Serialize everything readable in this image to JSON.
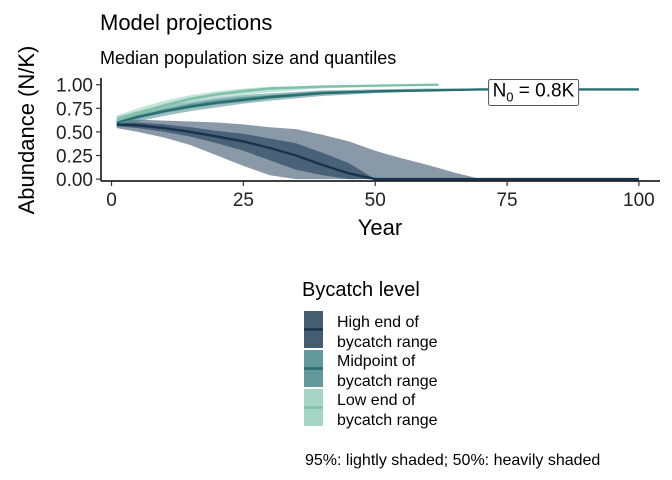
{
  "chart_data": {
    "type": "line",
    "title": "Model projections",
    "subtitle": "Median population size and quantiles",
    "xlabel": "Year",
    "ylabel": "Abundance  (N/K)",
    "xlim": [
      -2,
      104
    ],
    "ylim": [
      -0.02,
      1.05
    ],
    "xticks": [
      "0",
      "25",
      "50",
      "75",
      "100"
    ],
    "xtick_values": [
      0,
      25,
      50,
      75,
      100
    ],
    "yticks": [
      "0.00",
      "0.25",
      "0.50",
      "0.75",
      "1.00"
    ],
    "ytick_values": [
      0,
      0.25,
      0.5,
      0.75,
      1.0
    ],
    "grid": false,
    "legend_title": "Bycatch level",
    "legend_position": "bottom",
    "annotation": {
      "base": "N",
      "sub": "0",
      "rest": " = 0.8K",
      "x": 80,
      "y": 0.95
    },
    "caption": "95%: lightly shaded; 50%: heavily shaded",
    "series": [
      {
        "name": "High end of bycatch range",
        "label_lines": [
          "High end of",
          "bycatch range"
        ],
        "color": "#163450",
        "band_color": "#163450",
        "x": [
          1,
          5,
          10,
          15,
          20,
          25,
          30,
          35,
          40,
          45,
          50,
          55,
          60,
          65,
          70,
          100
        ],
        "y": [
          0.58,
          0.57,
          0.54,
          0.5,
          0.45,
          0.4,
          0.33,
          0.25,
          0.15,
          0.06,
          0.0,
          0.0,
          0.0,
          0.0,
          0.0,
          0.0
        ],
        "lo95": [
          0.54,
          0.5,
          0.44,
          0.36,
          0.25,
          0.14,
          0.04,
          0.0,
          0.0,
          0.0,
          0.0,
          0.0,
          0.0,
          0.0,
          0.0,
          0.0
        ],
        "hi95": [
          0.62,
          0.63,
          0.62,
          0.61,
          0.6,
          0.58,
          0.55,
          0.53,
          0.47,
          0.4,
          0.3,
          0.22,
          0.15,
          0.07,
          0.0,
          0.0
        ],
        "lo50": [
          0.56,
          0.54,
          0.5,
          0.45,
          0.38,
          0.3,
          0.2,
          0.1,
          0.04,
          0.0,
          0.0,
          0.0,
          0.0,
          0.0,
          0.0,
          0.0
        ],
        "hi50": [
          0.6,
          0.6,
          0.58,
          0.55,
          0.51,
          0.48,
          0.43,
          0.38,
          0.28,
          0.17,
          0.0,
          0.0,
          0.0,
          0.0,
          0.0,
          0.0
        ]
      },
      {
        "name": "Midpoint of bycatch range",
        "label_lines": [
          "Midpoint of",
          "bycatch range"
        ],
        "color": "#2b6e72",
        "band_color": "#3a7f83",
        "x": [
          1,
          5,
          10,
          15,
          20,
          25,
          30,
          40,
          50,
          60,
          70,
          80,
          90,
          100
        ],
        "y": [
          0.6,
          0.66,
          0.72,
          0.77,
          0.81,
          0.84,
          0.87,
          0.91,
          0.93,
          0.94,
          0.95,
          0.95,
          0.95,
          0.95
        ],
        "lo95": [
          0.55,
          0.61,
          0.67,
          0.72,
          0.76,
          0.8,
          0.83,
          0.88,
          0.91,
          0.93,
          0.94,
          0.94,
          0.94,
          0.94
        ],
        "hi95": [
          0.66,
          0.72,
          0.78,
          0.82,
          0.86,
          0.89,
          0.91,
          0.94,
          0.95,
          0.96,
          0.96,
          0.96,
          0.96,
          0.96
        ],
        "lo50": [
          0.58,
          0.64,
          0.7,
          0.75,
          0.79,
          0.82,
          0.85,
          0.9,
          0.92,
          0.93,
          0.94,
          0.94,
          0.94,
          0.94
        ],
        "hi50": [
          0.62,
          0.69,
          0.75,
          0.8,
          0.84,
          0.87,
          0.89,
          0.93,
          0.94,
          0.95,
          0.95,
          0.95,
          0.95,
          0.95
        ]
      },
      {
        "name": "Low end of bycatch range",
        "label_lines": [
          "Low end of",
          "bycatch range"
        ],
        "color": "#7fc0ab",
        "band_color": "#8fcab6",
        "x": [
          1,
          5,
          10,
          15,
          20,
          25,
          30,
          40,
          50,
          62
        ],
        "y": [
          0.62,
          0.7,
          0.78,
          0.85,
          0.9,
          0.93,
          0.96,
          0.98,
          0.99,
          1.0
        ],
        "lo95": [
          0.57,
          0.65,
          0.73,
          0.8,
          0.85,
          0.89,
          0.92,
          0.96,
          0.98,
          0.99
        ],
        "hi95": [
          0.67,
          0.75,
          0.83,
          0.89,
          0.93,
          0.96,
          0.98,
          0.99,
          1.0,
          1.0
        ],
        "lo50": [
          0.6,
          0.68,
          0.76,
          0.83,
          0.88,
          0.92,
          0.95,
          0.97,
          0.99,
          1.0
        ],
        "hi50": [
          0.64,
          0.72,
          0.8,
          0.87,
          0.91,
          0.95,
          0.97,
          0.99,
          1.0,
          1.0
        ]
      }
    ]
  }
}
